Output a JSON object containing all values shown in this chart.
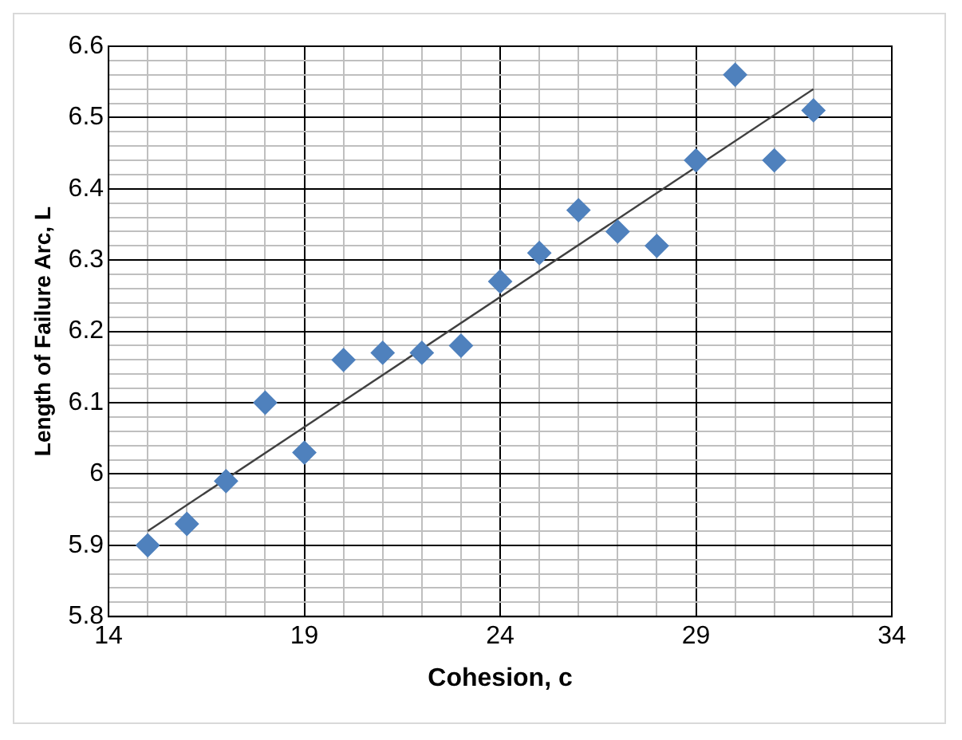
{
  "chart_data": {
    "type": "scatter",
    "xlabel": "Cohesion, c",
    "ylabel": "Length of Failure Arc, L",
    "xlim": [
      14,
      34
    ],
    "ylim": [
      5.8,
      6.6
    ],
    "xticks": [
      14,
      {
        "value": 15,
        "label": null
      },
      {
        "value": 16,
        "label": null
      },
      {
        "value": 17,
        "label": null
      },
      {
        "value": 18,
        "label": null
      },
      19,
      {
        "value": 20,
        "label": null
      },
      {
        "value": 21,
        "label": null
      },
      {
        "value": 22,
        "label": null
      },
      {
        "value": 23,
        "label": null
      },
      24,
      {
        "value": 25,
        "label": null
      },
      {
        "value": 26,
        "label": null
      },
      {
        "value": 27,
        "label": null
      },
      {
        "value": 28,
        "label": null
      },
      29,
      {
        "value": 30,
        "label": null
      },
      {
        "value": 31,
        "label": null
      },
      {
        "value": 32,
        "label": null
      },
      {
        "value": 33,
        "label": null
      },
      34
    ],
    "yticks": [
      5.8,
      {
        "value": 5.82,
        "label": null
      },
      {
        "value": 5.84,
        "label": null
      },
      {
        "value": 5.86,
        "label": null
      },
      {
        "value": 5.88,
        "label": null
      },
      5.9,
      {
        "value": 5.92,
        "label": null
      },
      {
        "value": 5.94,
        "label": null
      },
      {
        "value": 5.96,
        "label": null
      },
      {
        "value": 5.98,
        "label": null
      },
      {
        "value": 6,
        "label": "6"
      },
      {
        "value": 6.02,
        "label": null
      },
      {
        "value": 6.04,
        "label": null
      },
      {
        "value": 6.06,
        "label": null
      },
      {
        "value": 6.08,
        "label": null
      },
      6.1,
      {
        "value": 6.12,
        "label": null
      },
      {
        "value": 6.14,
        "label": null
      },
      {
        "value": 6.16,
        "label": null
      },
      {
        "value": 6.18,
        "label": null
      },
      6.2,
      {
        "value": 6.22,
        "label": null
      },
      {
        "value": 6.24,
        "label": null
      },
      {
        "value": 6.26,
        "label": null
      },
      {
        "value": 6.28,
        "label": null
      },
      6.3,
      {
        "value": 6.32,
        "label": null
      },
      {
        "value": 6.34,
        "label": null
      },
      {
        "value": 6.36,
        "label": null
      },
      {
        "value": 6.38,
        "label": null
      },
      6.4,
      {
        "value": 6.42,
        "label": null
      },
      {
        "value": 6.44,
        "label": null
      },
      {
        "value": 6.46,
        "label": null
      },
      {
        "value": 6.48,
        "label": null
      },
      6.5,
      {
        "value": 6.52,
        "label": null
      },
      {
        "value": 6.54,
        "label": null
      },
      {
        "value": 6.56,
        "label": null
      },
      {
        "value": 6.58,
        "label": null
      },
      6.6
    ],
    "grid": true,
    "marker": "diamond",
    "series": [
      {
        "type": "scatter",
        "color": "#4f81bd",
        "x": [
          15,
          16,
          17,
          18,
          19,
          20,
          21,
          22,
          23,
          24,
          25,
          26,
          27,
          28,
          29,
          30,
          31,
          32
        ],
        "values": [
          5.9,
          5.93,
          5.99,
          6.1,
          6.03,
          6.16,
          6.17,
          6.17,
          6.18,
          6.27,
          6.31,
          6.37,
          6.34,
          6.32,
          6.44,
          6.56,
          6.44,
          6.51
        ]
      },
      {
        "type": "line",
        "color": "#404040",
        "marker": "none",
        "x": [
          15,
          32
        ],
        "values": [
          5.92,
          6.54
        ]
      }
    ]
  }
}
